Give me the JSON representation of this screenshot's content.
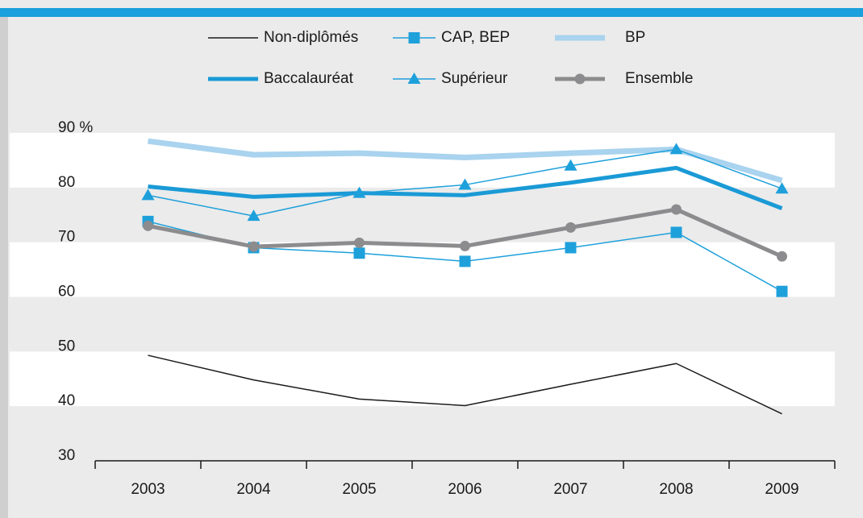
{
  "chart_data": {
    "type": "line",
    "categories": [
      "2003",
      "2004",
      "2005",
      "2006",
      "2007",
      "2008",
      "2009"
    ],
    "ylim": [
      30,
      90
    ],
    "yticks": [
      {
        "value": 90,
        "label": "90 %"
      },
      80,
      70,
      60,
      50,
      40,
      30
    ],
    "series": [
      {
        "name": "Non-diplômés",
        "color": "#1a1a1a",
        "line_width": 1.5,
        "marker": "none",
        "values": [
          49.3,
          44.8,
          41.3,
          40.1,
          44.0,
          47.8,
          38.6
        ]
      },
      {
        "name": "CAP, BEP",
        "color": "#1ea0db",
        "line_width": 1.5,
        "marker": "square",
        "values": [
          73.8,
          69.0,
          68.0,
          66.5,
          69.0,
          71.8,
          61.0
        ]
      },
      {
        "name": "BP",
        "color": "#a9d3ee",
        "line_width": 7,
        "marker": "none",
        "values": [
          88.5,
          86.0,
          86.3,
          85.5,
          86.3,
          87.0,
          81.3
        ]
      },
      {
        "name": "Baccalauréat",
        "color": "#1a9ad6",
        "line_width": 5,
        "marker": "none",
        "values": [
          80.2,
          78.3,
          79.0,
          78.6,
          80.9,
          83.6,
          76.2
        ]
      },
      {
        "name": "Supérieur",
        "color": "#1ea0db",
        "line_width": 1.5,
        "marker": "triangle",
        "values": [
          78.6,
          74.8,
          79.0,
          80.5,
          84.0,
          87.0,
          79.8
        ]
      },
      {
        "name": "Ensemble",
        "color": "#8c8c8e",
        "line_width": 5,
        "marker": "circle",
        "values": [
          73.0,
          69.2,
          69.9,
          69.3,
          72.7,
          76.0,
          67.4
        ]
      }
    ]
  }
}
